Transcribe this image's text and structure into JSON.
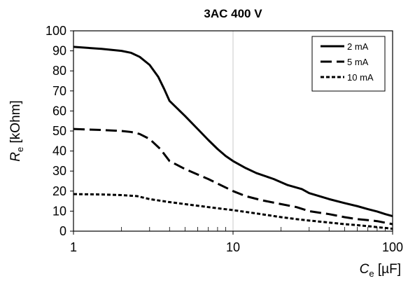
{
  "chart_data": {
    "type": "line",
    "title": "3AC 400 V",
    "xlabel": {
      "symbol": "C",
      "subscript": "e",
      "unit": " [µF]"
    },
    "ylabel": {
      "symbol": "R",
      "subscript": "e",
      "unit": " [kOhm]"
    },
    "xscale": "log",
    "xlim": [
      1,
      100
    ],
    "ylim": [
      0,
      100
    ],
    "x_ticks": [
      1,
      10,
      100
    ],
    "x_tick_labels": [
      "1",
      "10",
      "100"
    ],
    "y_ticks": [
      0,
      10,
      20,
      30,
      40,
      50,
      60,
      70,
      80,
      90,
      100
    ],
    "y_tick_labels": [
      "0",
      "10",
      "20",
      "30",
      "40",
      "50",
      "60",
      "70",
      "80",
      "90",
      "100"
    ],
    "grid": {
      "y_major": false,
      "x_major": true,
      "x_minor": true
    },
    "legend": {
      "position": "top-right",
      "entries": [
        "2 mA",
        "5 mA",
        "10 mA"
      ]
    },
    "series": [
      {
        "name": "2 mA",
        "style": "solid",
        "color": "#000000",
        "points": [
          [
            1,
            92
          ],
          [
            1.5,
            91
          ],
          [
            2,
            90
          ],
          [
            2.3,
            89
          ],
          [
            2.6,
            87
          ],
          [
            3,
            83
          ],
          [
            3.4,
            77
          ],
          [
            3.7,
            71
          ],
          [
            4,
            65
          ],
          [
            5,
            57.5
          ],
          [
            6,
            51
          ],
          [
            7,
            45.5
          ],
          [
            8,
            41
          ],
          [
            9,
            37.5
          ],
          [
            10,
            35
          ],
          [
            12,
            31.5
          ],
          [
            14,
            29
          ],
          [
            18,
            26
          ],
          [
            22,
            23
          ],
          [
            27,
            21
          ],
          [
            30,
            19
          ],
          [
            40,
            16
          ],
          [
            50,
            14
          ],
          [
            60,
            12.5
          ],
          [
            70,
            11
          ],
          [
            80,
            9.8
          ],
          [
            90,
            8.5
          ],
          [
            100,
            7.5
          ]
        ]
      },
      {
        "name": "5 mA",
        "style": "long-dash",
        "color": "#000000",
        "points": [
          [
            1,
            51
          ],
          [
            1.5,
            50.5
          ],
          [
            2,
            50
          ],
          [
            2.3,
            49.5
          ],
          [
            2.6,
            48.5
          ],
          [
            3,
            46
          ],
          [
            3.5,
            41
          ],
          [
            4,
            35
          ],
          [
            5,
            31
          ],
          [
            7,
            26
          ],
          [
            10,
            20
          ],
          [
            12,
            17.5
          ],
          [
            15,
            15.5
          ],
          [
            20,
            13.5
          ],
          [
            25,
            12
          ],
          [
            30,
            10
          ],
          [
            40,
            8.5
          ],
          [
            50,
            7
          ],
          [
            60,
            6
          ],
          [
            70,
            5.5
          ],
          [
            80,
            5
          ],
          [
            90,
            4.2
          ],
          [
            100,
            3.5
          ]
        ]
      },
      {
        "name": "10 mA",
        "style": "short-dash",
        "color": "#000000",
        "points": [
          [
            1,
            18.5
          ],
          [
            1.5,
            18.3
          ],
          [
            2,
            18
          ],
          [
            2.5,
            17.5
          ],
          [
            3,
            16
          ],
          [
            4,
            14.5
          ],
          [
            5,
            13.5
          ],
          [
            7,
            12
          ],
          [
            10,
            10.5
          ],
          [
            15,
            8.5
          ],
          [
            20,
            7
          ],
          [
            25,
            6
          ],
          [
            30,
            5.3
          ],
          [
            40,
            4.3
          ],
          [
            50,
            3.5
          ],
          [
            60,
            3
          ],
          [
            70,
            2.5
          ],
          [
            80,
            2
          ],
          [
            90,
            1.6
          ],
          [
            100,
            1.2
          ]
        ]
      }
    ]
  }
}
